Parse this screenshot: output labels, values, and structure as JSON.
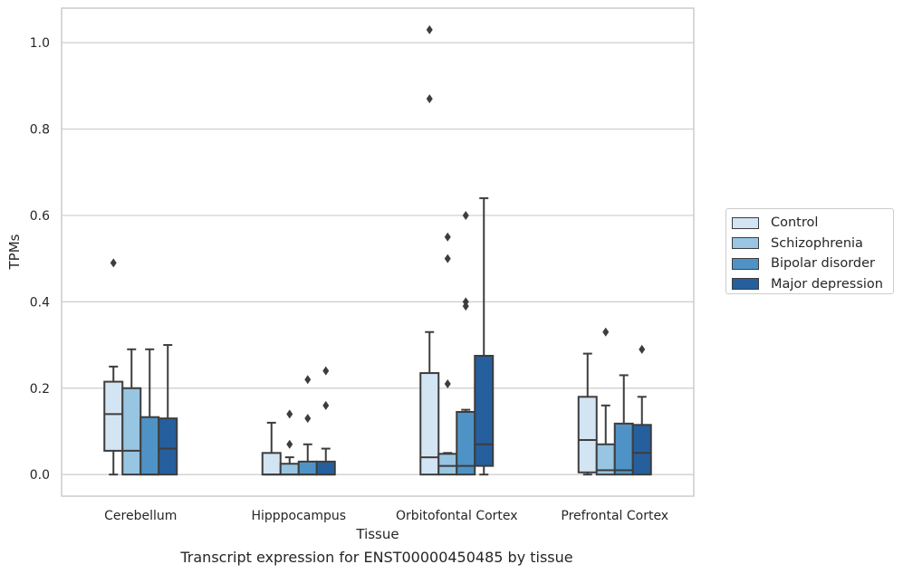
{
  "caption": "Transcript expression for ENST00000450485 by tissue",
  "legend": {
    "items": [
      {
        "label": "Control",
        "color": "#d3e4f3"
      },
      {
        "label": "Schizophrenia",
        "color": "#98c5e1"
      },
      {
        "label": "Bipolar disorder",
        "color": "#4f93c6"
      },
      {
        "label": "Major depression",
        "color": "#255f9e"
      }
    ]
  },
  "chart_data": {
    "type": "boxplot",
    "xlabel": "Tissue",
    "ylabel": "TPMs",
    "ylim": [
      -0.05,
      1.08
    ],
    "yticks": [
      0.0,
      0.2,
      0.4,
      0.6,
      0.8,
      1.0
    ],
    "ytick_labels": [
      "0.0",
      "0.2",
      "0.4",
      "0.6",
      "0.8",
      "1.0"
    ],
    "grid": "horizontal",
    "legend_position": "right",
    "categories": [
      "Cerebellum",
      "Hipppocampus",
      "Orbitofontal Cortex",
      "Prefrontal Cortex"
    ],
    "series": [
      {
        "name": "Control",
        "color": "#d3e4f3",
        "boxes": [
          {
            "whislo": 0.0,
            "q1": 0.055,
            "med": 0.14,
            "q3": 0.215,
            "whishi": 0.25,
            "fliers": [
              0.49
            ]
          },
          {
            "whislo": 0.0,
            "q1": 0.0,
            "med": 0.0,
            "q3": 0.05,
            "whishi": 0.12,
            "fliers": []
          },
          {
            "whislo": 0.0,
            "q1": 0.0,
            "med": 0.04,
            "q3": 0.235,
            "whishi": 0.33,
            "fliers": [
              0.87,
              1.03
            ]
          },
          {
            "whislo": 0.0,
            "q1": 0.005,
            "med": 0.08,
            "q3": 0.18,
            "whishi": 0.28,
            "fliers": []
          }
        ]
      },
      {
        "name": "Schizophrenia",
        "color": "#98c5e1",
        "boxes": [
          {
            "whislo": 0.0,
            "q1": 0.0,
            "med": 0.055,
            "q3": 0.2,
            "whishi": 0.29,
            "fliers": []
          },
          {
            "whislo": 0.0,
            "q1": 0.0,
            "med": 0.0,
            "q3": 0.025,
            "whishi": 0.04,
            "fliers": [
              0.07,
              0.14
            ]
          },
          {
            "whislo": 0.0,
            "q1": 0.0,
            "med": 0.02,
            "q3": 0.048,
            "whishi": 0.05,
            "fliers": [
              0.21,
              0.5,
              0.55
            ]
          },
          {
            "whislo": 0.0,
            "q1": 0.0,
            "med": 0.01,
            "q3": 0.07,
            "whishi": 0.16,
            "fliers": [
              0.33
            ]
          }
        ]
      },
      {
        "name": "Bipolar disorder",
        "color": "#4f93c6",
        "boxes": [
          {
            "whislo": 0.0,
            "q1": 0.0,
            "med": 0.0,
            "q3": 0.133,
            "whishi": 0.29,
            "fliers": []
          },
          {
            "whislo": 0.0,
            "q1": 0.0,
            "med": 0.0,
            "q3": 0.03,
            "whishi": 0.07,
            "fliers": [
              0.13,
              0.22
            ]
          },
          {
            "whislo": 0.0,
            "q1": 0.0,
            "med": 0.02,
            "q3": 0.145,
            "whishi": 0.15,
            "fliers": [
              0.39,
              0.4,
              0.6
            ]
          },
          {
            "whislo": 0.0,
            "q1": 0.0,
            "med": 0.01,
            "q3": 0.118,
            "whishi": 0.23,
            "fliers": []
          }
        ]
      },
      {
        "name": "Major depression",
        "color": "#255f9e",
        "boxes": [
          {
            "whislo": 0.0,
            "q1": 0.0,
            "med": 0.06,
            "q3": 0.13,
            "whishi": 0.3,
            "fliers": []
          },
          {
            "whislo": 0.0,
            "q1": 0.0,
            "med": 0.0,
            "q3": 0.03,
            "whishi": 0.06,
            "fliers": [
              0.16,
              0.24
            ]
          },
          {
            "whislo": 0.0,
            "q1": 0.02,
            "med": 0.07,
            "q3": 0.275,
            "whishi": 0.64,
            "fliers": []
          },
          {
            "whislo": 0.0,
            "q1": 0.0,
            "med": 0.05,
            "q3": 0.115,
            "whishi": 0.18,
            "fliers": [
              0.29
            ]
          }
        ]
      }
    ]
  }
}
